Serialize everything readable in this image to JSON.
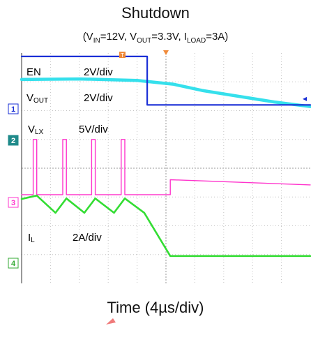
{
  "chart_data": {
    "type": "line",
    "title": "Shutdown",
    "subtitle_parts": {
      "open": "(V",
      "vin_sub": "IN",
      "vin_val": "=12V, V",
      "vout_sub": "OUT",
      "vout_val": "=3.3V, I",
      "iload_sub": "LOAD",
      "iload_val": "=3A)"
    },
    "xlabel": "Time (4µs/div)",
    "xlim": [
      0,
      40
    ],
    "ylim": [
      0,
      8
    ],
    "grid": true,
    "series": [
      {
        "name": "EN",
        "scale": "2V/div",
        "color": "#1a2fd6",
        "channel": "1",
        "x": [
          0,
          17.4,
          17.4,
          40
        ],
        "y": [
          7.88,
          7.88,
          6.2,
          6.2
        ]
      },
      {
        "name": "VOUT",
        "scale": "2V/div",
        "color": "#35e0ec",
        "x": [
          0,
          8,
          16,
          21,
          25,
          30,
          35,
          40
        ],
        "y": [
          7.08,
          7.1,
          7.05,
          6.92,
          6.7,
          6.5,
          6.3,
          6.14
        ]
      },
      {
        "name": "VLX",
        "scale": "5V/div",
        "color": "#ff33cc",
        "channel": "3",
        "x": [
          0,
          1.6,
          1.6,
          2.1,
          2.1,
          5.7,
          5.7,
          6.2,
          6.2,
          9.7,
          9.7,
          10.2,
          10.2,
          13.8,
          13.8,
          14.3,
          14.3,
          20.6,
          20.6,
          40
        ],
        "y": [
          3.08,
          3.08,
          5.0,
          5.0,
          3.08,
          3.08,
          5.0,
          5.0,
          3.08,
          3.08,
          5.0,
          5.0,
          3.08,
          3.08,
          5.0,
          5.0,
          3.08,
          3.08,
          3.6,
          3.42
        ]
      },
      {
        "name": "IL",
        "scale": "2A/div",
        "color": "#33dd33",
        "channel": "4",
        "x": [
          0,
          2.1,
          4.7,
          6.2,
          8.7,
          10.2,
          12.8,
          14.3,
          17.0,
          20.6,
          40
        ],
        "y": [
          2.93,
          3.05,
          2.45,
          2.95,
          2.45,
          2.95,
          2.45,
          2.95,
          2.45,
          0.95,
          0.95
        ]
      }
    ],
    "markers": {
      "trigger": "T",
      "right_arrow": "◂"
    }
  }
}
